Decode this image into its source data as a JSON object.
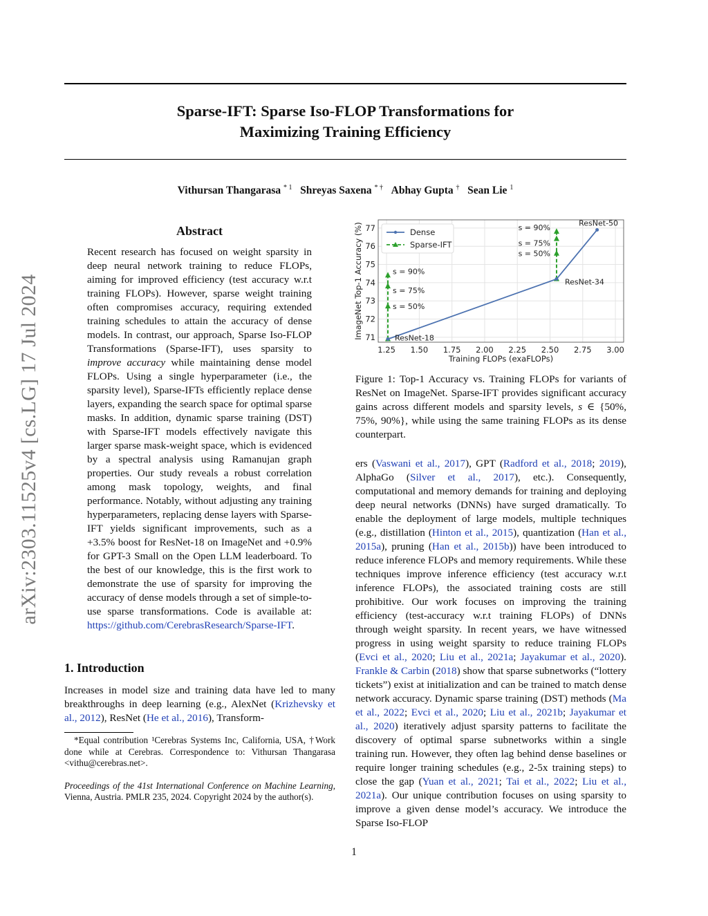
{
  "sidebar_stamp": "arXiv:2303.11525v4  [cs.LG]  17 Jul 2024",
  "title_lines": [
    "Sparse-IFT: Sparse Iso-FLOP Transformations for",
    "Maximizing Training Efficiency"
  ],
  "authors": [
    {
      "name": "Vithursan Thangarasa",
      "marks": "* 1"
    },
    {
      "name": "Shreyas Saxena",
      "marks": "* †"
    },
    {
      "name": "Abhay Gupta",
      "marks": "†"
    },
    {
      "name": "Sean Lie",
      "marks": "1"
    }
  ],
  "abstract_heading": "Abstract",
  "abstract": [
    [
      {
        "t": "Recent research has focused on weight sparsity in deep neural network training to reduce FLOPs, aiming for improved efficiency (test accuracy w.r.t training FLOPs). However, sparse weight training often compromises accuracy, requiring extended training schedules to attain the accuracy of dense models.  In contrast, our approach, Sparse Iso-FLOP Transformations (Sparse-IFT), uses sparsity to "
      },
      {
        "t": "improve accuracy",
        "s": "it"
      },
      {
        "t": " while maintaining dense model FLOPs.  Using a single hyperparameter (i.e., the sparsity level), Sparse-IFTs efficiently replace dense layers, expanding the search space for optimal sparse masks. In addition, dynamic sparse training (DST) with Sparse-IFT models effectively navigate this larger sparse mask-weight space, which is evidenced by a spectral analysis using Ramanujan graph properties. Our study reveals a robust correlation among mask topology, weights, and final performance. Notably, without adjusting any training hyperparameters, replacing dense layers with Sparse-IFT yields significant improvements, such as a +3.5% boost for ResNet-18 on ImageNet and +0.9% for GPT-3 Small on the Open LLM leaderboard.  To the best of our knowledge, this is the first work to demonstrate the use of sparsity for improving the accuracy of dense models through a set of simple-to-use sparse transformations. Code is available at: "
      },
      {
        "t": "https://github.com/CerebrasResearch/Sparse-IFT",
        "s": "lnk"
      },
      {
        "t": "."
      }
    ]
  ],
  "intro_heading": "1. Introduction",
  "intro": [
    [
      {
        "t": "Increases in model size and training data have led to many breakthroughs in deep learning (e.g., AlexNet ("
      },
      {
        "t": "Krizhevsky et al., 2012",
        "s": "lnk"
      },
      {
        "t": "), ResNet ("
      },
      {
        "t": "He et al., 2016",
        "s": "lnk"
      },
      {
        "t": "), Transform-"
      }
    ]
  ],
  "footnotes": {
    "contrib": "*Equal contribution  ¹Cerebras Systems Inc, California, USA, †Work done while at Cerebras.  Correspondence to:  Vithursan Thangarasa <vithu@cerebras.net>.",
    "proceedings_italic": "Proceedings of the 41st International Conference on Machine Learning",
    "proceedings_rest": ", Vienna, Austria. PMLR 235, 2024. Copyright 2024 by the author(s)."
  },
  "caption": [
    [
      {
        "t": "Figure 1: Top-1 Accuracy vs. Training FLOPs for variants of ResNet on ImageNet.  Sparse-IFT provides significant accuracy gains across different models and sparsity levels, "
      },
      {
        "t": "s",
        "s": "it"
      },
      {
        "t": " ∈ {50%, 75%, 90%}, while using the same training FLOPs as its dense counterpart."
      }
    ]
  ],
  "right_column": [
    [
      {
        "t": "ers ("
      },
      {
        "t": "Vaswani et al., 2017",
        "s": "lnk"
      },
      {
        "t": "), GPT ("
      },
      {
        "t": "Radford et al., 2018",
        "s": "lnk"
      },
      {
        "t": "; "
      },
      {
        "t": "2019",
        "s": "lnk"
      },
      {
        "t": "), AlphaGo ("
      },
      {
        "t": "Silver et al., 2017",
        "s": "lnk"
      },
      {
        "t": "), etc.). Consequently, computational and memory demands for training and deploying deep neural networks (DNNs) have surged dramatically. To enable the deployment of large models, multiple techniques (e.g., distillation ("
      },
      {
        "t": "Hinton et al., 2015",
        "s": "lnk"
      },
      {
        "t": "), quantization ("
      },
      {
        "t": "Han et al., 2015a",
        "s": "lnk"
      },
      {
        "t": "), pruning ("
      },
      {
        "t": "Han et al., 2015b",
        "s": "lnk"
      },
      {
        "t": ")) have been introduced to reduce inference FLOPs and memory requirements. While these techniques improve inference efficiency (test accuracy w.r.t inference FLOPs), the associated training costs are still prohibitive. Our work focuses on improving the training efficiency (test-accuracy w.r.t training FLOPs) of DNNs through weight sparsity. In recent years, we have witnessed progress in using weight sparsity to reduce training FLOPs ("
      },
      {
        "t": "Evci et al., 2020",
        "s": "lnk"
      },
      {
        "t": "; "
      },
      {
        "t": "Liu et al., 2021a",
        "s": "lnk"
      },
      {
        "t": "; "
      },
      {
        "t": "Jayakumar et al., 2020",
        "s": "lnk"
      },
      {
        "t": "). "
      },
      {
        "t": "Frankle & Carbin",
        "s": "lnk"
      },
      {
        "t": " ("
      },
      {
        "t": "2018",
        "s": "lnk"
      },
      {
        "t": ") show that sparse subnetworks (“lottery tickets”) exist at initialization and can be trained to match dense network accuracy. Dynamic sparse training (DST) methods ("
      },
      {
        "t": "Ma et al., 2022",
        "s": "lnk"
      },
      {
        "t": "; "
      },
      {
        "t": "Evci et al., 2020",
        "s": "lnk"
      },
      {
        "t": "; "
      },
      {
        "t": "Liu et al., 2021b",
        "s": "lnk"
      },
      {
        "t": "; "
      },
      {
        "t": "Jayakumar et al., 2020",
        "s": "lnk"
      },
      {
        "t": ") iteratively adjust sparsity patterns to facilitate the discovery of optimal sparse subnetworks within a single training run.  However, they often lag behind dense baselines or require longer training schedules (e.g., 2-5x training steps) to close the gap ("
      },
      {
        "t": "Yuan et al., 2021",
        "s": "lnk"
      },
      {
        "t": "; "
      },
      {
        "t": "Tai et al., 2022",
        "s": "lnk"
      },
      {
        "t": "; "
      },
      {
        "t": "Liu et al., 2021a",
        "s": "lnk"
      },
      {
        "t": "). Our unique contribution focuses on using sparsity to improve a given dense model’s accuracy. We introduce the Sparse Iso-FLOP"
      }
    ]
  ],
  "page_number": "1",
  "chart_data": {
    "type": "line",
    "title": "",
    "xlabel": "Training FLOPs (exaFLOPs)",
    "ylabel": "ImageNet Top-1 Accuracy (%)",
    "xlim": [
      1.186,
      3.063
    ],
    "ylim": [
      70.73,
      77.45
    ],
    "xticks": [
      1.25,
      1.5,
      1.75,
      2.0,
      2.25,
      2.5,
      2.75,
      3.0
    ],
    "xtick_labels": [
      "1.25",
      "1.50",
      "1.75",
      "2.00",
      "2.25",
      "2.50",
      "2.75",
      "3.00"
    ],
    "yticks": [
      71,
      72,
      73,
      74,
      75,
      76,
      77
    ],
    "ytick_labels": [
      "71",
      "72",
      "73",
      "74",
      "75",
      "76",
      "77"
    ],
    "grid": true,
    "legend_placement": "top-left",
    "colors": {
      "dense": "#4c72b0",
      "sparse": "#2ca02c"
    },
    "series": [
      {
        "name": "Dense",
        "style": "solid-dot",
        "points": [
          {
            "x": 1.26,
            "y": 70.9,
            "label": "ResNet-18"
          },
          {
            "x": 2.55,
            "y": 74.2,
            "label": "ResNet-34"
          },
          {
            "x": 2.86,
            "y": 76.9,
            "label": "ResNet-50"
          }
        ]
      },
      {
        "name": "Sparse-IFT",
        "style": "dashed-triangle",
        "groups": [
          {
            "x": 1.26,
            "points": [
              {
                "y": 70.9,
                "label": ""
              },
              {
                "y": 72.7,
                "label": "s = 50%"
              },
              {
                "y": 73.8,
                "label": "s = 75%"
              },
              {
                "y": 74.4,
                "label": "s = 90%"
              }
            ]
          },
          {
            "x": 2.55,
            "points": [
              {
                "y": 74.2,
                "label": ""
              },
              {
                "y": 75.6,
                "label": "s = 50%"
              },
              {
                "y": 76.4,
                "label": "s = 75%"
              },
              {
                "y": 76.8,
                "label": "s = 90%"
              }
            ]
          }
        ]
      }
    ]
  }
}
